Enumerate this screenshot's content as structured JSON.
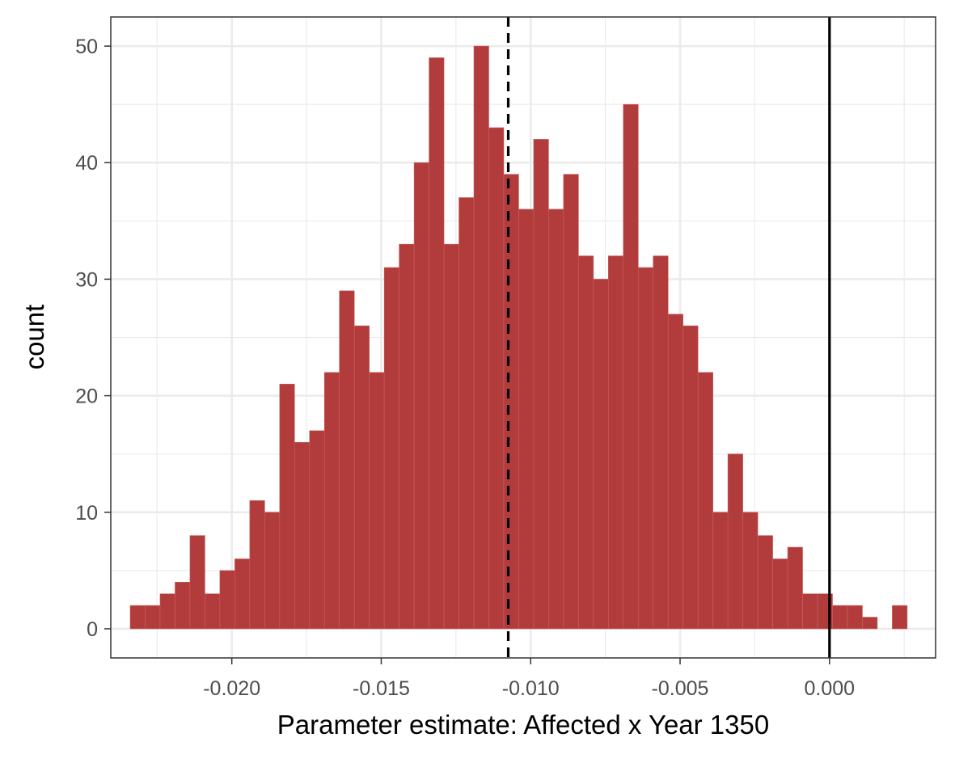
{
  "chart_data": {
    "type": "bar",
    "title": "",
    "xlabel": "Parameter estimate: Affected x Year 1350",
    "ylabel": "count",
    "xlim": [
      -0.02405,
      0.00355
    ],
    "ylim": [
      -2.5,
      52.5
    ],
    "x_ticks": [
      {
        "value": -0.02,
        "label": "-0.020"
      },
      {
        "value": -0.015,
        "label": "-0.015"
      },
      {
        "value": -0.01,
        "label": "-0.010"
      },
      {
        "value": -0.005,
        "label": "-0.005"
      },
      {
        "value": 0.0,
        "label": "0.000"
      }
    ],
    "y_ticks": [
      {
        "value": 0,
        "label": "0"
      },
      {
        "value": 10,
        "label": "10"
      },
      {
        "value": 20,
        "label": "20"
      },
      {
        "value": 30,
        "label": "30"
      },
      {
        "value": 40,
        "label": "40"
      },
      {
        "value": 50,
        "label": "50"
      }
    ],
    "x_minor_gridlines": [
      -0.0225,
      -0.0175,
      -0.0125,
      -0.0075,
      -0.0025,
      0.0025
    ],
    "y_minor_gridlines": [
      5,
      15,
      25,
      35,
      45
    ],
    "grid": true,
    "bin_start": -0.0234,
    "bin_width": 0.0005,
    "counts": [
      2,
      2,
      3,
      4,
      8,
      3,
      5,
      6,
      11,
      10,
      21,
      16,
      17,
      22,
      29,
      26,
      22,
      31,
      33,
      40,
      49,
      33,
      37,
      50,
      43,
      39,
      36,
      42,
      36,
      39,
      32,
      30,
      32,
      45,
      31,
      32,
      27,
      26,
      22,
      10,
      15,
      10,
      8,
      6,
      7,
      3,
      3,
      2,
      2,
      1,
      0,
      2
    ],
    "bar_color": "#b23c3c",
    "bar_edge_color": "#c8605f",
    "reference_lines": [
      {
        "x": -0.01075,
        "style": "dashed",
        "color": "#000000"
      },
      {
        "x": 0.0,
        "style": "solid",
        "color": "#000000"
      }
    ]
  }
}
